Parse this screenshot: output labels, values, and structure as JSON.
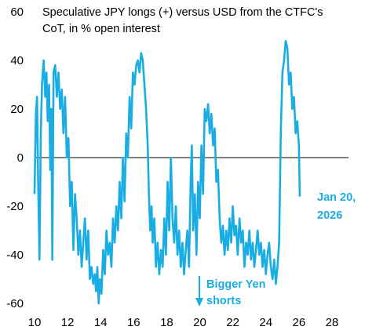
{
  "chart_data": {
    "type": "line",
    "title": "Speculative JPY longs (+) versus USD from the CTFC's",
    "subtitle": "CoT, in % open interest",
    "xlabel": "",
    "ylabel": "",
    "xlim": [
      10,
      29
    ],
    "ylim": [
      -60,
      60
    ],
    "x_ticks": [
      "10",
      "12",
      "14",
      "16",
      "18",
      "20",
      "22",
      "24",
      "26",
      "28"
    ],
    "y_ticks": [
      "60",
      "40",
      "20",
      "0",
      "-20",
      "-40",
      "-60"
    ],
    "grid": false,
    "line_color": "#1AADE4",
    "zero_line_color": "#000000",
    "series": [
      {
        "values": [
          [
            10.0,
            -15
          ],
          [
            10.08,
            18
          ],
          [
            10.15,
            25
          ],
          [
            10.22,
            -10
          ],
          [
            10.3,
            -42
          ],
          [
            10.38,
            10
          ],
          [
            10.45,
            30
          ],
          [
            10.55,
            40
          ],
          [
            10.65,
            25
          ],
          [
            10.72,
            35
          ],
          [
            10.8,
            15
          ],
          [
            10.88,
            30
          ],
          [
            10.95,
            -5
          ],
          [
            11.02,
            20
          ],
          [
            11.08,
            -42
          ],
          [
            11.15,
            35
          ],
          [
            11.25,
            38
          ],
          [
            11.35,
            25
          ],
          [
            11.45,
            35
          ],
          [
            11.55,
            20
          ],
          [
            11.65,
            28
          ],
          [
            11.75,
            10
          ],
          [
            11.85,
            25
          ],
          [
            11.95,
            0
          ],
          [
            12.05,
            8
          ],
          [
            12.15,
            -20
          ],
          [
            12.25,
            -10
          ],
          [
            12.35,
            -38
          ],
          [
            12.45,
            -15
          ],
          [
            12.55,
            -25
          ],
          [
            12.65,
            -40
          ],
          [
            12.75,
            -30
          ],
          [
            12.85,
            -45
          ],
          [
            12.95,
            -35
          ],
          [
            13.05,
            -25
          ],
          [
            13.15,
            -42
          ],
          [
            13.25,
            -30
          ],
          [
            13.35,
            -50
          ],
          [
            13.45,
            -45
          ],
          [
            13.55,
            -52
          ],
          [
            13.65,
            -48
          ],
          [
            13.72,
            -55
          ],
          [
            13.8,
            -45
          ],
          [
            13.88,
            -60
          ],
          [
            13.95,
            -50
          ],
          [
            14.05,
            -56
          ],
          [
            14.15,
            -38
          ],
          [
            14.25,
            -48
          ],
          [
            14.35,
            -30
          ],
          [
            14.45,
            -40
          ],
          [
            14.55,
            -35
          ],
          [
            14.65,
            -45
          ],
          [
            14.75,
            -25
          ],
          [
            14.85,
            -35
          ],
          [
            14.95,
            -20
          ],
          [
            15.05,
            -30
          ],
          [
            15.15,
            -10
          ],
          [
            15.25,
            -25
          ],
          [
            15.35,
            0
          ],
          [
            15.45,
            -18
          ],
          [
            15.55,
            10
          ],
          [
            15.65,
            0
          ],
          [
            15.75,
            25
          ],
          [
            15.85,
            12
          ],
          [
            15.95,
            35
          ],
          [
            16.05,
            30
          ],
          [
            16.15,
            38
          ],
          [
            16.25,
            40
          ],
          [
            16.35,
            35
          ],
          [
            16.45,
            43
          ],
          [
            16.55,
            40
          ],
          [
            16.65,
            30
          ],
          [
            16.75,
            20
          ],
          [
            16.85,
            5
          ],
          [
            16.92,
            -15
          ],
          [
            17.0,
            -30
          ],
          [
            17.08,
            -20
          ],
          [
            17.15,
            -35
          ],
          [
            17.25,
            -25
          ],
          [
            17.35,
            -45
          ],
          [
            17.45,
            -35
          ],
          [
            17.55,
            -48
          ],
          [
            17.65,
            -38
          ],
          [
            17.75,
            -45
          ],
          [
            17.85,
            -25
          ],
          [
            17.95,
            -40
          ],
          [
            18.05,
            -10
          ],
          [
            18.15,
            -30
          ],
          [
            18.25,
            0
          ],
          [
            18.35,
            -25
          ],
          [
            18.45,
            -35
          ],
          [
            18.55,
            -20
          ],
          [
            18.65,
            -40
          ],
          [
            18.75,
            -30
          ],
          [
            18.85,
            -45
          ],
          [
            18.95,
            -35
          ],
          [
            19.05,
            -48
          ],
          [
            19.15,
            -38
          ],
          [
            19.25,
            -30
          ],
          [
            19.35,
            -45
          ],
          [
            19.45,
            -10
          ],
          [
            19.52,
            5
          ],
          [
            19.6,
            -30
          ],
          [
            19.7,
            -15
          ],
          [
            19.8,
            -40
          ],
          [
            19.9,
            -10
          ],
          [
            20.0,
            -25
          ],
          [
            20.1,
            5
          ],
          [
            20.2,
            -15
          ],
          [
            20.3,
            20
          ],
          [
            20.4,
            15
          ],
          [
            20.5,
            22
          ],
          [
            20.6,
            10
          ],
          [
            20.7,
            18
          ],
          [
            20.8,
            5
          ],
          [
            20.9,
            12
          ],
          [
            21.0,
            -10
          ],
          [
            21.1,
            -5
          ],
          [
            21.2,
            -25
          ],
          [
            21.3,
            -35
          ],
          [
            21.4,
            -28
          ],
          [
            21.5,
            -40
          ],
          [
            21.6,
            -30
          ],
          [
            21.7,
            -38
          ],
          [
            21.8,
            -25
          ],
          [
            21.9,
            -35
          ],
          [
            22.0,
            -20
          ],
          [
            22.1,
            -32
          ],
          [
            22.2,
            -28
          ],
          [
            22.3,
            -40
          ],
          [
            22.4,
            -25
          ],
          [
            22.5,
            -35
          ],
          [
            22.6,
            -30
          ],
          [
            22.7,
            -45
          ],
          [
            22.8,
            -35
          ],
          [
            22.9,
            -40
          ],
          [
            23.0,
            -30
          ],
          [
            23.1,
            -42
          ],
          [
            23.2,
            -35
          ],
          [
            23.3,
            -45
          ],
          [
            23.4,
            -38
          ],
          [
            23.5,
            -30
          ],
          [
            23.6,
            -40
          ],
          [
            23.7,
            -35
          ],
          [
            23.8,
            -45
          ],
          [
            23.9,
            -38
          ],
          [
            24.0,
            -48
          ],
          [
            24.1,
            -40
          ],
          [
            24.2,
            -35
          ],
          [
            24.3,
            -45
          ],
          [
            24.4,
            -50
          ],
          [
            24.5,
            -42
          ],
          [
            24.6,
            -52
          ],
          [
            24.7,
            -45
          ],
          [
            24.8,
            -35
          ],
          [
            24.9,
            10
          ],
          [
            25.0,
            35
          ],
          [
            25.1,
            40
          ],
          [
            25.2,
            48
          ],
          [
            25.3,
            45
          ],
          [
            25.4,
            30
          ],
          [
            25.5,
            35
          ],
          [
            25.6,
            20
          ],
          [
            25.7,
            25
          ],
          [
            25.8,
            10
          ],
          [
            25.9,
            15
          ],
          [
            26.0,
            5
          ],
          [
            26.05,
            -16
          ]
        ]
      }
    ],
    "annotations": [
      {
        "text_lines": [
          "Bigger Yen",
          "shorts"
        ],
        "color": "#1AADE4"
      },
      {
        "text_lines": [
          "Jan 20,",
          "2026"
        ],
        "color": "#1AADE4"
      }
    ]
  }
}
